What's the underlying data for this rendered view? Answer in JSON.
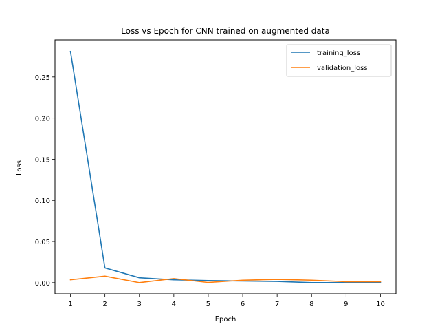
{
  "chart_data": {
    "type": "line",
    "title": "Loss vs Epoch for CNN trained on augmented data",
    "xlabel": "Epoch",
    "ylabel": "Loss",
    "x": [
      1,
      2,
      3,
      4,
      5,
      6,
      7,
      8,
      9,
      10
    ],
    "xlim": [
      0.55,
      10.45
    ],
    "ylim": [
      -0.0135,
      0.295
    ],
    "xticks": [
      1,
      2,
      3,
      4,
      5,
      6,
      7,
      8,
      9,
      10
    ],
    "yticks": [
      0.0,
      0.05,
      0.1,
      0.15,
      0.2,
      0.25
    ],
    "ytick_labels": [
      "0.00",
      "0.05",
      "0.10",
      "0.15",
      "0.20",
      "0.25"
    ],
    "grid": false,
    "legend_position": "top-right",
    "series": [
      {
        "name": "training_loss",
        "color": "#1f77b4",
        "values": [
          0.281,
          0.018,
          0.006,
          0.0035,
          0.0025,
          0.002,
          0.0015,
          0.0,
          0.0,
          0.0
        ]
      },
      {
        "name": "validation_loss",
        "color": "#ff7f0e",
        "values": [
          0.0035,
          0.008,
          0.0,
          0.005,
          0.0002,
          0.003,
          0.004,
          0.003,
          0.0012,
          0.0012
        ]
      }
    ]
  }
}
